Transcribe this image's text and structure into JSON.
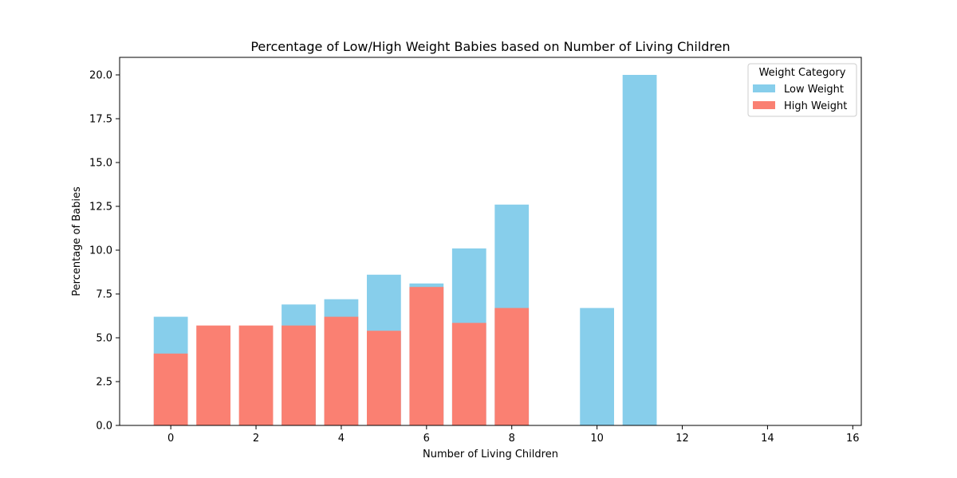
{
  "chart_data": {
    "type": "bar",
    "title": "Percentage of Low/High Weight Babies based on Number of Living Children",
    "xlabel": "Number of Living Children",
    "ylabel": "Percentage of Babies",
    "xlim": [
      -1.2,
      16.2
    ],
    "ylim": [
      0,
      21
    ],
    "x_ticks": [
      0,
      2,
      4,
      6,
      8,
      10,
      12,
      14,
      16
    ],
    "y_ticks": [
      0.0,
      2.5,
      5.0,
      7.5,
      10.0,
      12.5,
      15.0,
      17.5,
      20.0
    ],
    "y_tick_labels": [
      "0.0",
      "2.5",
      "5.0",
      "7.5",
      "10.0",
      "12.5",
      "15.0",
      "17.5",
      "20.0"
    ],
    "x": [
      0,
      1,
      2,
      3,
      4,
      5,
      6,
      7,
      8,
      10,
      11
    ],
    "bar_width": 0.8,
    "grid": false,
    "legend_position": "top-right",
    "legend_title": "Weight Category",
    "series": [
      {
        "name": "Low Weight",
        "color": "#87ceeb",
        "values": [
          6.2,
          0,
          0,
          6.9,
          7.2,
          8.6,
          8.1,
          10.1,
          12.6,
          6.7,
          20.0
        ]
      },
      {
        "name": "High Weight",
        "color": "#fa8072",
        "values": [
          4.1,
          5.7,
          5.7,
          5.7,
          6.2,
          5.4,
          7.9,
          5.85,
          6.7,
          0,
          0
        ]
      }
    ]
  }
}
